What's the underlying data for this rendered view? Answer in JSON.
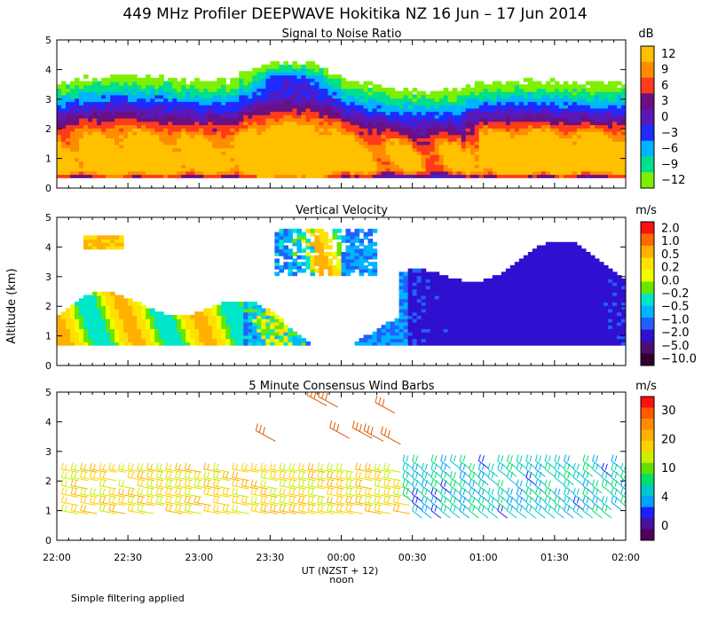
{
  "title": "449 MHz Profiler DEEPWAVE Hokitika NZ 16 Jun – 17 Jun 2014",
  "ylabel": "Altitude (km)",
  "xlabel": "UT (NZST + 12)",
  "noon_label": "noon",
  "footer_note": "Simple filtering applied",
  "x_ticks": [
    "22:00",
    "22:30",
    "23:00",
    "23:30",
    "00:00",
    "00:30",
    "01:00",
    "01:30",
    "02:00"
  ],
  "y_ticks": [
    "0",
    "1",
    "2",
    "3",
    "4",
    "5"
  ],
  "chart_data": [
    {
      "type": "heatmap",
      "title": "Signal to Noise Ratio",
      "units": "dB",
      "ylim": [
        0,
        5
      ],
      "colorbar": {
        "labels": [
          "12",
          "9",
          "6",
          "3",
          "0",
          "−3",
          "−6",
          "−9",
          "−12"
        ],
        "colors": [
          "#ffc000",
          "#ff8c00",
          "#ff3b1a",
          "#6b1080",
          "#5a18b8",
          "#1f2bff",
          "#00b4ff",
          "#00e08a",
          "#7cf000"
        ]
      }
    },
    {
      "type": "heatmap",
      "title": "Vertical Velocity",
      "units": "m/s",
      "ylim": [
        0,
        5
      ],
      "colorbar": {
        "labels": [
          "2.0",
          "1.0",
          "0.5",
          "0.2",
          "0.0",
          "−0.2",
          "−0.5",
          "−1.0",
          "−2.0",
          "−5.0",
          "−10.0"
        ],
        "colors": [
          "#ff1010",
          "#ff6a00",
          "#ffb000",
          "#ffe000",
          "#f0ff00",
          "#66e600",
          "#00e6c8",
          "#00b4ff",
          "#2060ff",
          "#3010d0",
          "#4a1070",
          "#300030"
        ]
      }
    },
    {
      "type": "wind-barbs",
      "title": "5 Minute Consensus Wind Barbs",
      "units": "m/s",
      "ylim": [
        0,
        5
      ],
      "colorbar": {
        "labels": [
          "30",
          "20",
          "10",
          "4",
          "0"
        ],
        "colors": [
          "#ff1010",
          "#ff5a00",
          "#ff8c00",
          "#ffb000",
          "#ffd000",
          "#c8f000",
          "#60e000",
          "#00e06a",
          "#00c8c8",
          "#00a0ff",
          "#1a20ff",
          "#4a10a0",
          "#500060"
        ]
      }
    }
  ]
}
